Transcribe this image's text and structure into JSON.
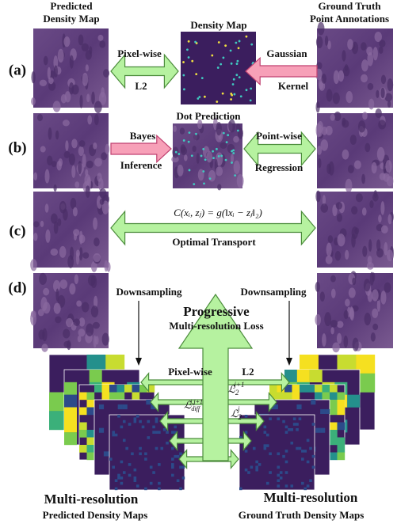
{
  "headers": {
    "predicted": [
      "Predicted",
      "Density Map"
    ],
    "density": "Density Map",
    "ground_truth": [
      "Ground Truth",
      "Point Annotations"
    ]
  },
  "rows": {
    "a": {
      "label": "(a)",
      "left_arrow": [
        "Pixel-wise",
        "L2"
      ],
      "right_arrow": [
        "Gaussian",
        "Kernel"
      ]
    },
    "b": {
      "label": "(b)",
      "title": "Dot Prediction",
      "left_arrow": [
        "Bayes",
        "Inference"
      ],
      "right_arrow": [
        "Point-wise",
        "Regression"
      ]
    },
    "c": {
      "label": "(c)",
      "formula": "C(xᵢ, zⱼ) = g(‖xᵢ − zⱼ‖₂)",
      "arrow": "Optimal Transport"
    },
    "d": {
      "label": "(d)",
      "left_down": "Downsampling",
      "right_down": "Downsampling",
      "center": [
        "Progressive",
        "Multi-resolution Loss"
      ],
      "arrow_top": [
        "Pixel-wise",
        "L2"
      ],
      "losses": [
        {
          "base": "ℒ",
          "sub": "2",
          "sup": "j+1"
        },
        {
          "base": "ℒ",
          "sub": "diff",
          "sup": "j,j+1"
        },
        {
          "base": "ℒ",
          "sub": "2",
          "sup": "j"
        }
      ],
      "left_caption": [
        "Multi-resolution",
        "Predicted Density Maps"
      ],
      "right_caption": [
        "Multi-resolution",
        "Ground Truth  Density Maps"
      ]
    }
  }
}
